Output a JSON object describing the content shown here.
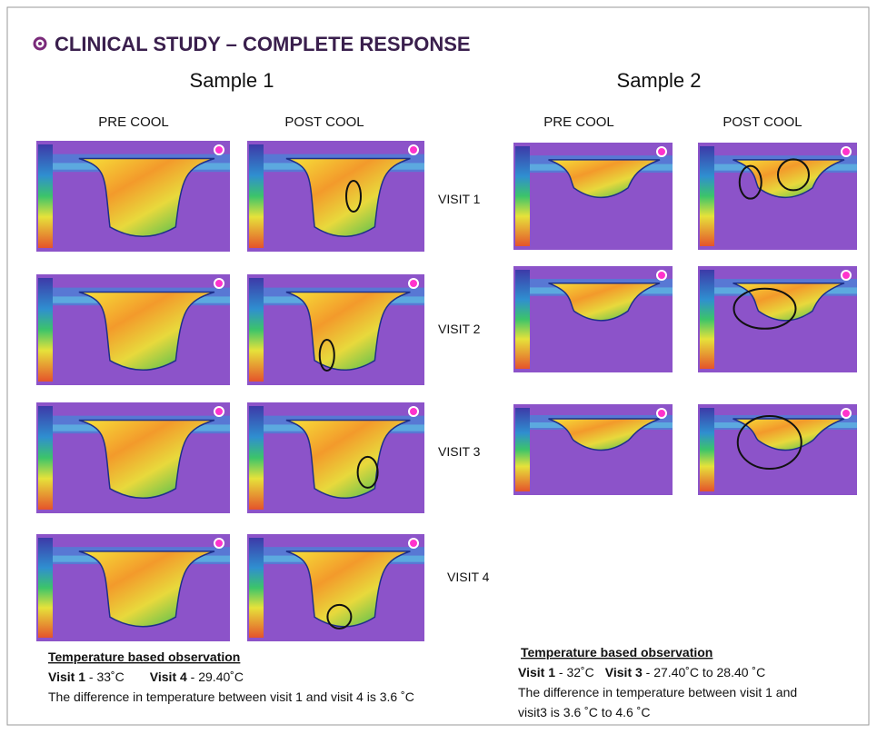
{
  "title": "CLINICAL STUDY – COMPLETE RESPONSE",
  "samples": [
    {
      "name": "Sample 1",
      "pre": "PRE COOL",
      "post": "POST COOL",
      "observation": {
        "heading": "Temperature based observation",
        "line1": [
          {
            "label": "Visit 1",
            "value": " - 33˚C"
          },
          {
            "label": "Visit 4",
            "value": " - 29.40˚C"
          }
        ],
        "line2": "The difference in temperature between  visit 1 and visit 4 is 3.6 ˚C"
      }
    },
    {
      "name": "Sample 2",
      "pre": "PRE COOL",
      "post": "POST COOL",
      "observation": {
        "heading": "Temperature based observation",
        "line1": [
          {
            "label": "Visit 1",
            "value": " - 32˚C"
          },
          {
            "label": "Visit 3",
            "value": " - 27.40˚C  to 28.40 ˚C"
          }
        ],
        "line2": "The difference in temperature between  visit 1 and",
        "line3": "visit3 is 3.6 ˚C to 4.6 ˚C"
      }
    }
  ],
  "visits": [
    "VISIT 1",
    "VISIT 2",
    "VISIT 3",
    "VISIT 4"
  ]
}
